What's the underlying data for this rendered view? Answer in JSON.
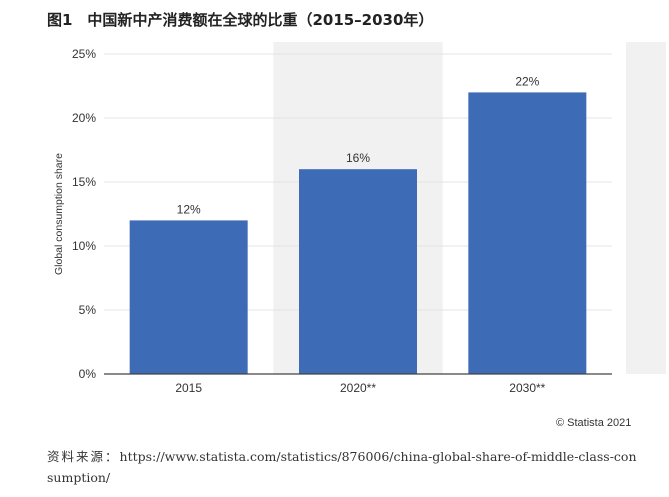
{
  "figure": {
    "title": "图1　中国新中产消费额在全球的比重（2015–2030年）",
    "credit": "© Statista 2021",
    "source_prefix": "资料来源：",
    "source_url": "https://www.statista.com/statistics/876006/china-global-share-of-middle-class-consumption/"
  },
  "colors": {
    "bar": "#3d6bb5",
    "shade": "#f1f1f1",
    "grid": "#e4e4e4",
    "axis": "#444444",
    "text": "#333333"
  },
  "chart_data": {
    "type": "bar",
    "title": "",
    "xlabel": "",
    "ylabel": "Global consumption share",
    "categories": [
      "2015",
      "2020**",
      "2030**"
    ],
    "values": [
      12,
      16,
      22
    ],
    "value_labels": [
      "12%",
      "16%",
      "22%"
    ],
    "ylim": [
      0,
      25
    ],
    "yticks": [
      0,
      5,
      10,
      15,
      20,
      25
    ],
    "ytick_labels": [
      "0%",
      "5%",
      "10%",
      "15%",
      "20%",
      "25%"
    ],
    "shaded_categories": [
      "2020**"
    ],
    "grid": true,
    "legend": "none"
  }
}
